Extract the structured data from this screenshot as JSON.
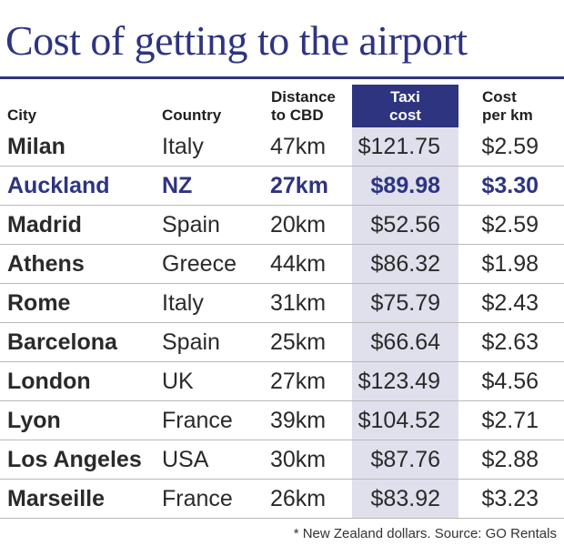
{
  "chart_data": {
    "type": "table",
    "title": "Cost of getting to the airport",
    "columns": [
      "City",
      "Country",
      "Distance to CBD",
      "Taxi cost",
      "Cost per km"
    ],
    "column_labels": {
      "city": "City",
      "country": "Country",
      "distance": [
        "Distance",
        "to CBD"
      ],
      "taxi": [
        "Taxi",
        "cost"
      ],
      "perkm": [
        "Cost",
        "per km"
      ]
    },
    "rows": [
      {
        "city": "Milan",
        "country": "Italy",
        "distance": "47km",
        "taxi": "$121.75",
        "perkm": "$2.59"
      },
      {
        "city": "Auckland",
        "country": "NZ",
        "distance": "27km",
        "taxi": "$89.98",
        "perkm": "$3.30",
        "highlight": true
      },
      {
        "city": "Madrid",
        "country": "Spain",
        "distance": "20km",
        "taxi": "$52.56",
        "perkm": "$2.59"
      },
      {
        "city": "Athens",
        "country": "Greece",
        "distance": "44km",
        "taxi": "$86.32",
        "perkm": "$1.98"
      },
      {
        "city": "Rome",
        "country": "Italy",
        "distance": "31km",
        "taxi": "$75.79",
        "perkm": "$2.43"
      },
      {
        "city": "Barcelona",
        "country": "Spain",
        "distance": "25km",
        "taxi": "$66.64",
        "perkm": "$2.63"
      },
      {
        "city": "London",
        "country": "UK",
        "distance": "27km",
        "taxi": "$123.49",
        "perkm": "$4.56"
      },
      {
        "city": "Lyon",
        "country": "France",
        "distance": "39km",
        "taxi": "$104.52",
        "perkm": "$2.71"
      },
      {
        "city": "Los Angeles",
        "country": "USA",
        "distance": "30km",
        "taxi": "$87.76",
        "perkm": "$2.88"
      },
      {
        "city": "Marseille",
        "country": "France",
        "distance": "26km",
        "taxi": "$83.92",
        "perkm": "$3.23"
      }
    ],
    "footnote": "* New Zealand dollars. Source: GO Rentals"
  },
  "colors": {
    "accent": "#2e3480",
    "taxi_column_band": "#dfe0ec",
    "row_separator": "#b9b9b9"
  }
}
